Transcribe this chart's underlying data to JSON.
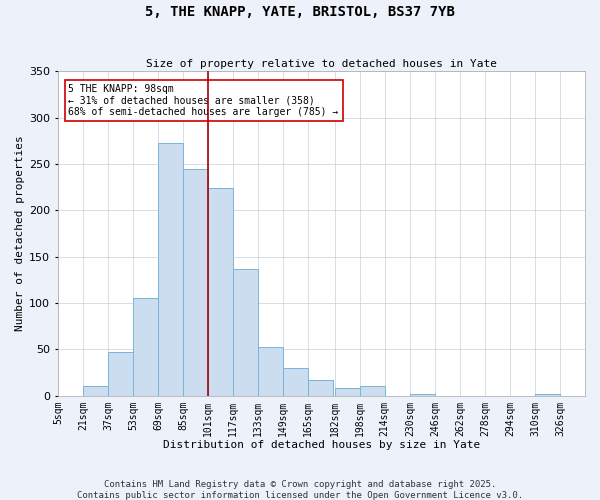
{
  "title": "5, THE KNAPP, YATE, BRISTOL, BS37 7YB",
  "subtitle": "Size of property relative to detached houses in Yate",
  "xlabel": "Distribution of detached houses by size in Yate",
  "ylabel": "Number of detached properties",
  "bin_labels": [
    "5sqm",
    "21sqm",
    "37sqm",
    "53sqm",
    "69sqm",
    "85sqm",
    "101sqm",
    "117sqm",
    "133sqm",
    "149sqm",
    "165sqm",
    "182sqm",
    "198sqm",
    "214sqm",
    "230sqm",
    "246sqm",
    "262sqm",
    "278sqm",
    "294sqm",
    "310sqm",
    "326sqm"
  ],
  "bin_edges": [
    5,
    21,
    37,
    53,
    69,
    85,
    101,
    117,
    133,
    149,
    165,
    182,
    198,
    214,
    230,
    246,
    262,
    278,
    294,
    310,
    326
  ],
  "bar_heights": [
    0,
    10,
    47,
    105,
    273,
    245,
    224,
    137,
    53,
    30,
    17,
    8,
    10,
    0,
    2,
    0,
    0,
    0,
    0,
    2
  ],
  "bar_facecolor": "#ccddf0",
  "bar_edgecolor": "#7ab4d8",
  "property_line_x": 101,
  "property_line_color": "#aa0000",
  "annotation_title": "5 THE KNAPP: 98sqm",
  "annotation_line1": "← 31% of detached houses are smaller (358)",
  "annotation_line2": "68% of semi-detached houses are larger (785) →",
  "annotation_box_edgecolor": "#cc0000",
  "annotation_box_facecolor": "#ffffff",
  "ylim": [
    0,
    350
  ],
  "yticks": [
    0,
    50,
    100,
    150,
    200,
    250,
    300,
    350
  ],
  "footer1": "Contains HM Land Registry data © Crown copyright and database right 2025.",
  "footer2": "Contains public sector information licensed under the Open Government Licence v3.0.",
  "background_color": "#edf2fa",
  "plot_background": "#ffffff",
  "title_fontsize": 10,
  "subtitle_fontsize": 8,
  "axis_label_fontsize": 8,
  "tick_fontsize": 7,
  "annotation_fontsize": 7,
  "footer_fontsize": 6.5
}
